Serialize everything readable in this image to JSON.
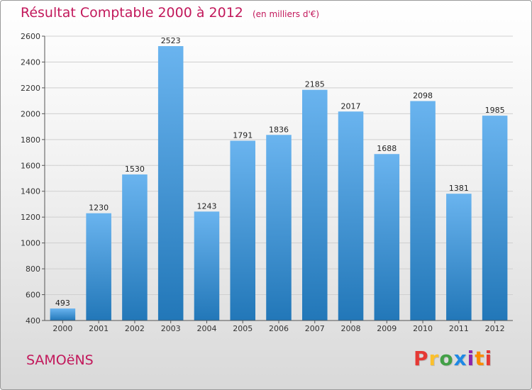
{
  "header": {
    "title": "Résultat Comptable 2000 à 2012",
    "subtitle": "(en milliers d'€)"
  },
  "footer": {
    "city": "SAMOëNS",
    "brand": "Proxiti",
    "brand_colors": [
      "#e53935",
      "#fbc02d",
      "#43a047",
      "#1e88e5",
      "#8e24aa",
      "#fb8c00",
      "#e53935"
    ]
  },
  "colors": {
    "title": "#c2185b",
    "bar_top": "#6ab4ef",
    "bar_bottom": "#2277b8",
    "grid": "#cfcfcf"
  },
  "chart_data": {
    "type": "bar",
    "title": "Résultat Comptable 2000 à 2012",
    "subtitle": "(en milliers d'€)",
    "xlabel": "",
    "ylabel": "",
    "categories": [
      "2000",
      "2001",
      "2002",
      "2003",
      "2004",
      "2005",
      "2006",
      "2007",
      "2008",
      "2009",
      "2010",
      "2011",
      "2012"
    ],
    "values": [
      493,
      1230,
      1530,
      2523,
      1243,
      1791,
      1836,
      2185,
      2017,
      1688,
      2098,
      1381,
      1985
    ],
    "ylim": [
      400,
      2600
    ],
    "yticks": [
      400,
      600,
      800,
      1000,
      1200,
      1400,
      1600,
      1800,
      2000,
      2200,
      2400,
      2600
    ],
    "grid": true,
    "data_labels": true
  }
}
